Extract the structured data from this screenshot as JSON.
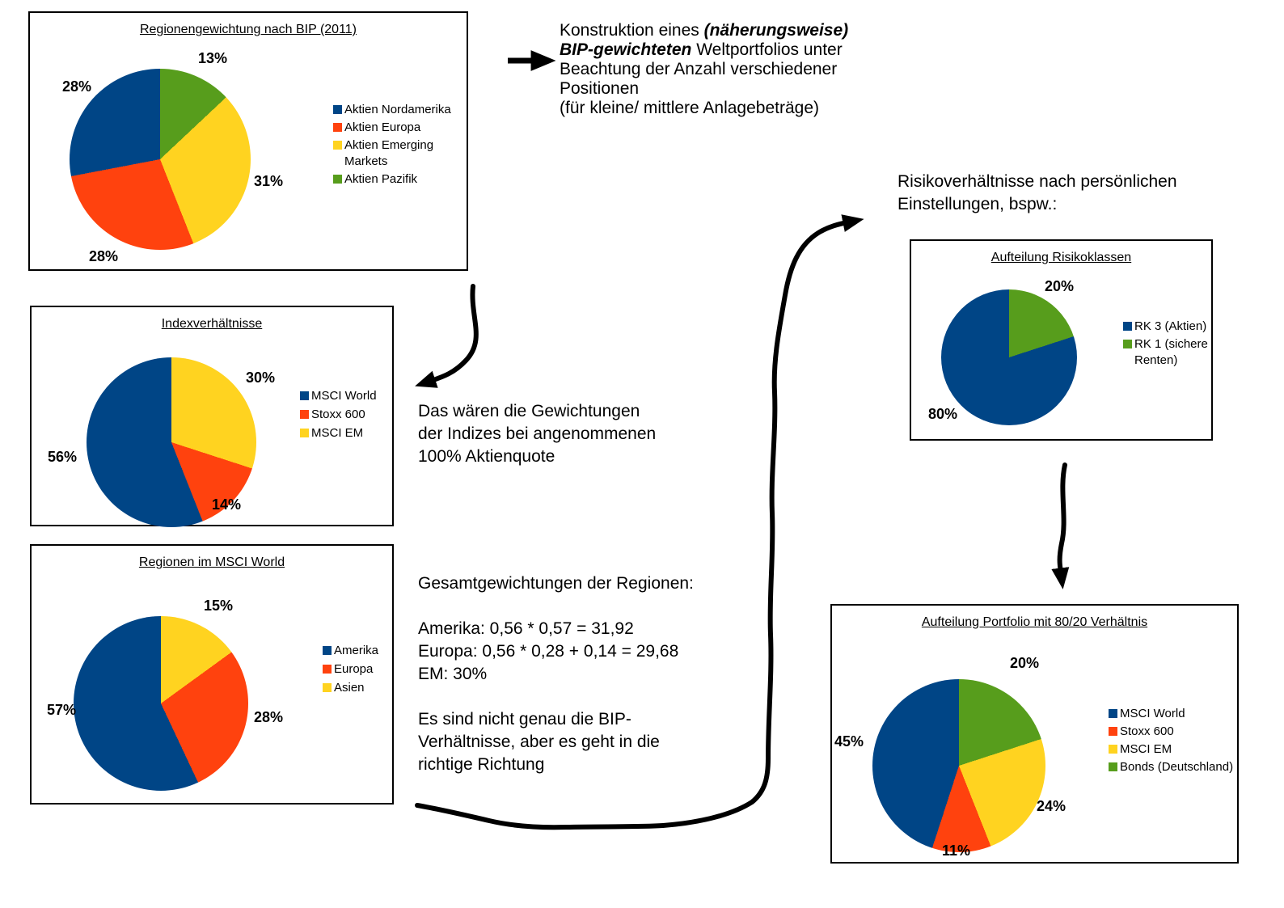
{
  "page": {
    "background": "#ffffff",
    "ink": "#000000"
  },
  "colors": {
    "blue": "#004586",
    "red": "#FF420E",
    "yellow": "#FFD320",
    "green": "#579D1C"
  },
  "chart_data": [
    {
      "type": "pie",
      "title": "Regionengewichtung nach BIP (2011)",
      "direction": "counterclockwise-from-top",
      "legend_position": "right",
      "series": [
        {
          "name": "Aktien Nordamerika",
          "value": 28,
          "label": "28%",
          "color": "#004586"
        },
        {
          "name": "Aktien Europa",
          "value": 28,
          "label": "28%",
          "color": "#FF420E"
        },
        {
          "name": "Aktien Emerging Markets",
          "value": 31,
          "label": "31%",
          "color": "#FFD320"
        },
        {
          "name": "Aktien Pazifik",
          "value": 13,
          "label": "13%",
          "color": "#579D1C"
        }
      ]
    },
    {
      "type": "pie",
      "title": "Indexverhältnisse",
      "direction": "counterclockwise-from-top",
      "legend_position": "right",
      "series": [
        {
          "name": "MSCI World",
          "value": 56,
          "label": "56%",
          "color": "#004586"
        },
        {
          "name": "Stoxx 600",
          "value": 14,
          "label": "14%",
          "color": "#FF420E"
        },
        {
          "name": "MSCI EM",
          "value": 30,
          "label": "30%",
          "color": "#FFD320"
        }
      ]
    },
    {
      "type": "pie",
      "title": "Regionen im MSCI World",
      "direction": "counterclockwise-from-top",
      "legend_position": "right",
      "series": [
        {
          "name": "Amerika",
          "value": 57,
          "label": "57%",
          "color": "#004586"
        },
        {
          "name": "Europa",
          "value": 28,
          "label": "28%",
          "color": "#FF420E"
        },
        {
          "name": "Asien",
          "value": 15,
          "label": "15%",
          "color": "#FFD320"
        }
      ]
    },
    {
      "type": "pie",
      "title": "Aufteilung Risikoklassen",
      "direction": "counterclockwise-from-top",
      "legend_position": "right",
      "series": [
        {
          "name": "RK 3 (Aktien)",
          "value": 80,
          "label": "80%",
          "color": "#004586"
        },
        {
          "name": "RK 1 (sichere Renten)",
          "value": 20,
          "label": "20%",
          "color": "#579D1C"
        }
      ]
    },
    {
      "type": "pie",
      "title": "Aufteilung Portfolio mit 80/20 Verhältnis",
      "direction": "counterclockwise-from-top",
      "legend_position": "right",
      "series": [
        {
          "name": "MSCI World",
          "value": 45,
          "label": "45%",
          "color": "#004586"
        },
        {
          "name": "Stoxx 600",
          "value": 11,
          "label": "11%",
          "color": "#FF420E"
        },
        {
          "name": "MSCI EM",
          "value": 24,
          "label": "24%",
          "color": "#FFD320"
        },
        {
          "name": "Bonds (Deutschland)",
          "value": 20,
          "label": "20%",
          "color": "#579D1C"
        }
      ]
    }
  ],
  "annotations": {
    "konstruktion_lines": [
      [
        {
          "t": "Konstruktion eines ",
          "s": "r"
        },
        {
          "t": "(näherungsweise)",
          "s": "bi"
        }
      ],
      [
        {
          "t": "BIP-gewichteten",
          "s": "bi"
        },
        {
          "t": " Weltportfolios unter",
          "s": "r"
        }
      ],
      [
        {
          "t": "Beachtung der Anzahl verschiedener",
          "s": "r"
        }
      ],
      [
        {
          "t": "Positionen",
          "s": "r"
        }
      ],
      [
        {
          "t": "(für kleine/ mittlere Anlagebeträge)",
          "s": "r"
        }
      ]
    ],
    "risiko": [
      "Risikoverhältnisse nach persönlichen",
      "Einstellungen, bspw.:"
    ],
    "das_waeren": [
      "Das wären die Gewichtungen",
      "der Indizes bei angenommenen",
      "100% Aktienquote"
    ],
    "gesamt": [
      "Gesamtgewichtungen der Regionen:",
      "",
      "Amerika: 0,56 * 0,57 = 31,92",
      "Europa: 0,56 * 0,28 + 0,14 = 29,68",
      "EM: 30%",
      "",
      "Es sind nicht genau die BIP-",
      "Verhältnisse, aber es geht in die",
      "richtige Richtung"
    ]
  }
}
